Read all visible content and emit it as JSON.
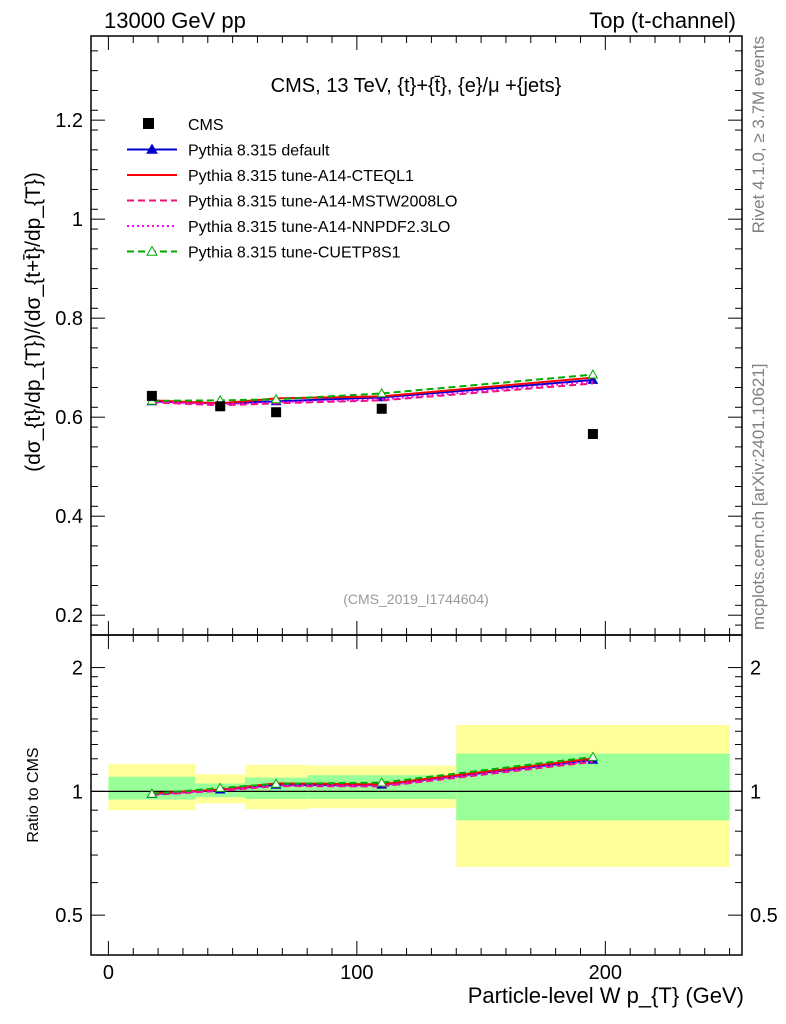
{
  "header": {
    "left": "13000 GeV pp",
    "right": "Top (t-channel)"
  },
  "side_labels": {
    "rivet": "Rivet 4.1.0, ≥ 3.7M events",
    "mcplots": "mcplots.cern.ch [arXiv:2401.10621]"
  },
  "watermark": "(CMS_2019_I1744604)",
  "chart_data": [
    {
      "type": "line",
      "panel": "main",
      "title": "CMS, 13 TeV, {t}+{t̄}, {e}/μ +{jets}",
      "xlabel": "Particle-level W p_{T} (GeV)",
      "ylabel": "(dσ_{t}/dp_{T})/(dσ_{t+t̄}/dp_{T})",
      "xlim": [
        -7,
        255
      ],
      "ylim": [
        0.16,
        1.37
      ],
      "yticks": [
        0.2,
        0.4,
        0.6,
        0.8,
        1,
        1.2
      ],
      "ytick_labels": [
        "0.2",
        "0.4",
        "0.6",
        "0.8",
        "1",
        "1.2"
      ],
      "grid": false,
      "data": {
        "name": "CMS",
        "color": "#000000",
        "bin_edges": [
          0,
          35,
          55,
          80,
          140,
          250
        ],
        "x": [
          17.5,
          45,
          67.5,
          110,
          195
        ],
        "y": [
          0.643,
          0.622,
          0.61,
          0.617,
          0.566
        ]
      },
      "series": [
        {
          "name": "Pythia 8.315 default",
          "color": "#0000cc",
          "style": "solid",
          "marker": "triangle-filled",
          "x": [
            17.5,
            45,
            67.5,
            110,
            195
          ],
          "y": [
            0.632,
            0.628,
            0.632,
            0.64,
            0.675
          ]
        },
        {
          "name": "Pythia 8.315 tune-A14-CTEQL1",
          "color": "#ff0000",
          "style": "solid",
          "marker": "none",
          "x": [
            17.5,
            45,
            67.5,
            110,
            195
          ],
          "y": [
            0.634,
            0.628,
            0.638,
            0.642,
            0.68
          ]
        },
        {
          "name": "Pythia 8.315 tune-A14-MSTW2008LO",
          "color": "#ee1177",
          "style": "dashed",
          "marker": "none",
          "x": [
            17.5,
            45,
            67.5,
            110,
            195
          ],
          "y": [
            0.63,
            0.624,
            0.628,
            0.634,
            0.668
          ]
        },
        {
          "name": "Pythia 8.315 tune-A14-NNPDF2.3LO",
          "color": "#ff00ff",
          "style": "dotted",
          "marker": "none",
          "x": [
            17.5,
            45,
            67.5,
            110,
            195
          ],
          "y": [
            0.631,
            0.626,
            0.63,
            0.636,
            0.672
          ]
        },
        {
          "name": "Pythia 8.315 tune-CUETP8S1",
          "color": "#00aa00",
          "style": "dashed",
          "marker": "triangle-open",
          "x": [
            17.5,
            45,
            67.5,
            110,
            195
          ],
          "y": [
            0.633,
            0.634,
            0.636,
            0.648,
            0.686
          ]
        }
      ],
      "legend_position": "top-left"
    },
    {
      "type": "line",
      "panel": "ratio",
      "ylabel": "Ratio to CMS",
      "xlabel": "Particle-level W p_{T} (GeV)",
      "xlim": [
        -7,
        255
      ],
      "ylim": [
        0.4,
        2.4
      ],
      "yscale": "log",
      "yticks": [
        0.5,
        1,
        2
      ],
      "ytick_labels": [
        "0.5",
        "1",
        "2"
      ],
      "xticks": [
        0,
        100,
        200
      ],
      "xtick_labels": [
        "0",
        "100",
        "200"
      ],
      "reference": 1,
      "bands": [
        {
          "x0": 0,
          "x1": 35,
          "stat_lo": 0.955,
          "stat_hi": 1.085,
          "tot_lo": 0.9,
          "tot_hi": 1.165
        },
        {
          "x0": 35,
          "x1": 55,
          "stat_lo": 0.968,
          "stat_hi": 1.045,
          "tot_lo": 0.935,
          "tot_hi": 1.1
        },
        {
          "x0": 55,
          "x1": 80,
          "stat_lo": 0.958,
          "stat_hi": 1.08,
          "tot_lo": 0.905,
          "tot_hi": 1.16
        },
        {
          "x0": 80,
          "x1": 140,
          "stat_lo": 0.958,
          "stat_hi": 1.095,
          "tot_lo": 0.91,
          "tot_hi": 1.155
        },
        {
          "x0": 140,
          "x1": 250,
          "stat_lo": 0.85,
          "stat_hi": 1.235,
          "tot_lo": 0.655,
          "tot_hi": 1.45
        }
      ],
      "series": [
        {
          "name": "Pythia 8.315 default",
          "color": "#0000cc",
          "style": "solid",
          "marker": "triangle-filled",
          "x": [
            17.5,
            45,
            67.5,
            110,
            195
          ],
          "y": [
            0.985,
            1.01,
            1.037,
            1.038,
            1.193
          ]
        },
        {
          "name": "Pythia 8.315 tune-A14-CTEQL1",
          "color": "#ff0000",
          "style": "solid",
          "marker": "none",
          "x": [
            17.5,
            45,
            67.5,
            110,
            195
          ],
          "y": [
            0.988,
            1.01,
            1.046,
            1.04,
            1.202
          ]
        },
        {
          "name": "Pythia 8.315 tune-A14-MSTW2008LO",
          "color": "#ee1177",
          "style": "dashed",
          "marker": "none",
          "x": [
            17.5,
            45,
            67.5,
            110,
            195
          ],
          "y": [
            0.98,
            1.003,
            1.03,
            1.028,
            1.18
          ]
        },
        {
          "name": "Pythia 8.315 tune-A14-NNPDF2.3LO",
          "color": "#ff00ff",
          "style": "dotted",
          "marker": "none",
          "x": [
            17.5,
            45,
            67.5,
            110,
            195
          ],
          "y": [
            0.982,
            1.006,
            1.033,
            1.031,
            1.187
          ]
        },
        {
          "name": "Pythia 8.315 tune-CUETP8S1",
          "color": "#00aa00",
          "style": "dashed",
          "marker": "triangle-open",
          "x": [
            17.5,
            45,
            67.5,
            110,
            195
          ],
          "y": [
            0.986,
            1.019,
            1.043,
            1.05,
            1.212
          ]
        }
      ]
    }
  ]
}
